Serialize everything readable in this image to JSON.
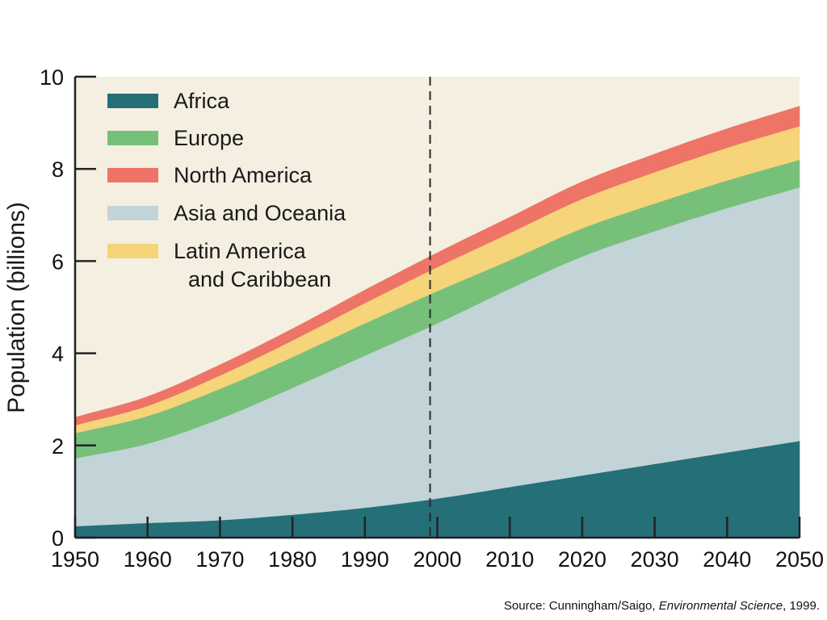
{
  "chart_data": {
    "type": "area",
    "stacked": true,
    "title": "",
    "xlabel": "",
    "ylabel": "Population (billions)",
    "xlim": [
      1950,
      2050
    ],
    "ylim": [
      0,
      10
    ],
    "x_ticks": [
      1950,
      1960,
      1970,
      1980,
      1990,
      2000,
      2010,
      2020,
      2030,
      2040,
      2050
    ],
    "y_ticks": [
      0,
      2,
      4,
      6,
      8,
      10
    ],
    "x": [
      1950,
      1960,
      1970,
      1980,
      1990,
      2000,
      2010,
      2020,
      2030,
      2040,
      2050
    ],
    "series": [
      {
        "name": "Africa",
        "color": "#246f78",
        "values": [
          0.25,
          0.32,
          0.38,
          0.5,
          0.65,
          0.85,
          1.1,
          1.35,
          1.6,
          1.85,
          2.1
        ]
      },
      {
        "name": "Asia and Oceania",
        "color": "#c2d4d8",
        "values": [
          1.47,
          1.72,
          2.2,
          2.75,
          3.3,
          3.8,
          4.3,
          4.75,
          5.05,
          5.3,
          5.5
        ]
      },
      {
        "name": "Europe",
        "color": "#77c07a",
        "values": [
          0.55,
          0.6,
          0.65,
          0.67,
          0.7,
          0.7,
          0.62,
          0.61,
          0.6,
          0.6,
          0.6
        ]
      },
      {
        "name": "Latin America and Caribbean",
        "color": "#f5d47a",
        "values": [
          0.17,
          0.22,
          0.29,
          0.36,
          0.44,
          0.52,
          0.59,
          0.64,
          0.68,
          0.71,
          0.73
        ]
      },
      {
        "name": "North America",
        "color": "#ee7467",
        "values": [
          0.17,
          0.2,
          0.23,
          0.25,
          0.28,
          0.31,
          0.34,
          0.37,
          0.39,
          0.41,
          0.43
        ]
      }
    ],
    "legend": {
      "position": "top-left",
      "order": [
        "Africa",
        "Europe",
        "North America",
        "Asia and Oceania",
        "Latin America and Caribbean"
      ],
      "label_lines": {
        "Africa": [
          "Africa"
        ],
        "Europe": [
          "Europe"
        ],
        "North America": [
          "North America"
        ],
        "Asia and Oceania": [
          "Asia and Oceania"
        ],
        "Latin America and Caribbean": [
          "Latin America",
          "and Caribbean"
        ]
      }
    },
    "annotations": [
      {
        "type": "vertical-dashed-line",
        "x": 1999
      }
    ],
    "background_color": "#f5efe1",
    "grid": false
  },
  "source": {
    "prefix": "Source: Cunningham/Saigo, ",
    "title": "Environmental Science",
    "suffix": ", 1999."
  }
}
